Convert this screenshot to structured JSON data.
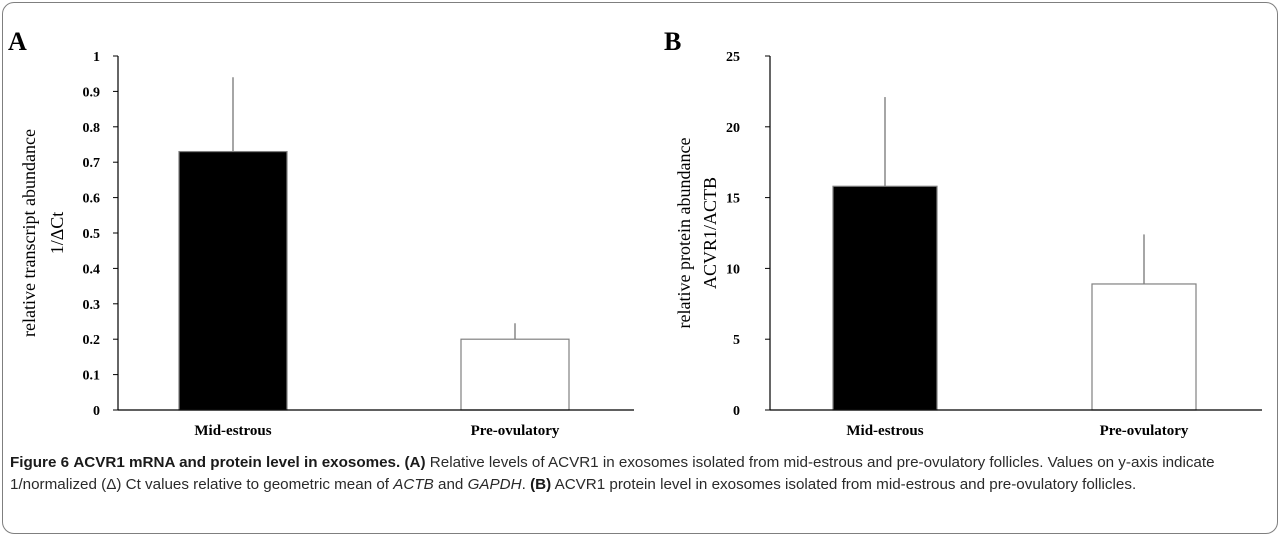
{
  "chart_data": [
    {
      "panel": "A",
      "type": "bar",
      "categories": [
        "Mid-estrous",
        "Pre-ovulatory"
      ],
      "values": [
        0.73,
        0.2
      ],
      "error_upper": [
        0.94,
        0.245
      ],
      "bar_colors": [
        "#000000",
        "#ffffff"
      ],
      "ylabel_line1": "relative transcript abundance",
      "ylabel_line2": "1/ΔCt",
      "ylim": [
        0,
        1
      ],
      "yticks": [
        0,
        0.1,
        0.2,
        0.3,
        0.4,
        0.5,
        0.6,
        0.7,
        0.8,
        0.9,
        1
      ],
      "ytick_labels": [
        "0",
        "0.1",
        "0.2",
        "0.3",
        "0.4",
        "0.5",
        "0.6",
        "0.7",
        "0.8",
        "0.9",
        "1"
      ],
      "grid": false
    },
    {
      "panel": "B",
      "type": "bar",
      "categories": [
        "Mid-estrous",
        "Pre-ovulatory"
      ],
      "values": [
        15.8,
        8.9
      ],
      "error_upper": [
        22.1,
        12.4
      ],
      "bar_colors": [
        "#000000",
        "#ffffff"
      ],
      "ylabel_line1": "relative protein abundance",
      "ylabel_line2": "ACVR1/ACTB",
      "ylim": [
        0,
        25
      ],
      "yticks": [
        0,
        5,
        10,
        15,
        20,
        25
      ],
      "ytick_labels": [
        "0",
        "5",
        "10",
        "15",
        "20",
        "25"
      ],
      "grid": false
    }
  ],
  "caption": {
    "figure_label": "Figure 6",
    "title": "ACVR1 mRNA and protein level in exosomes.",
    "panel_a_label": "(A)",
    "panel_a_text_1": "Relative levels of ACVR1 in exosomes isolated from mid-estrous and pre-ovulatory follicles. Values on y-axis indicate 1/normalized (Δ) Ct values relative to geometric mean of",
    "gene_1": "ACTB",
    "conj": "and",
    "gene_2": "GAPDH",
    "period": ".",
    "panel_b_label": "(B)",
    "panel_b_text": "ACVR1 protein level in exosomes isolated from mid-estrous and pre-ovulatory follicles."
  }
}
